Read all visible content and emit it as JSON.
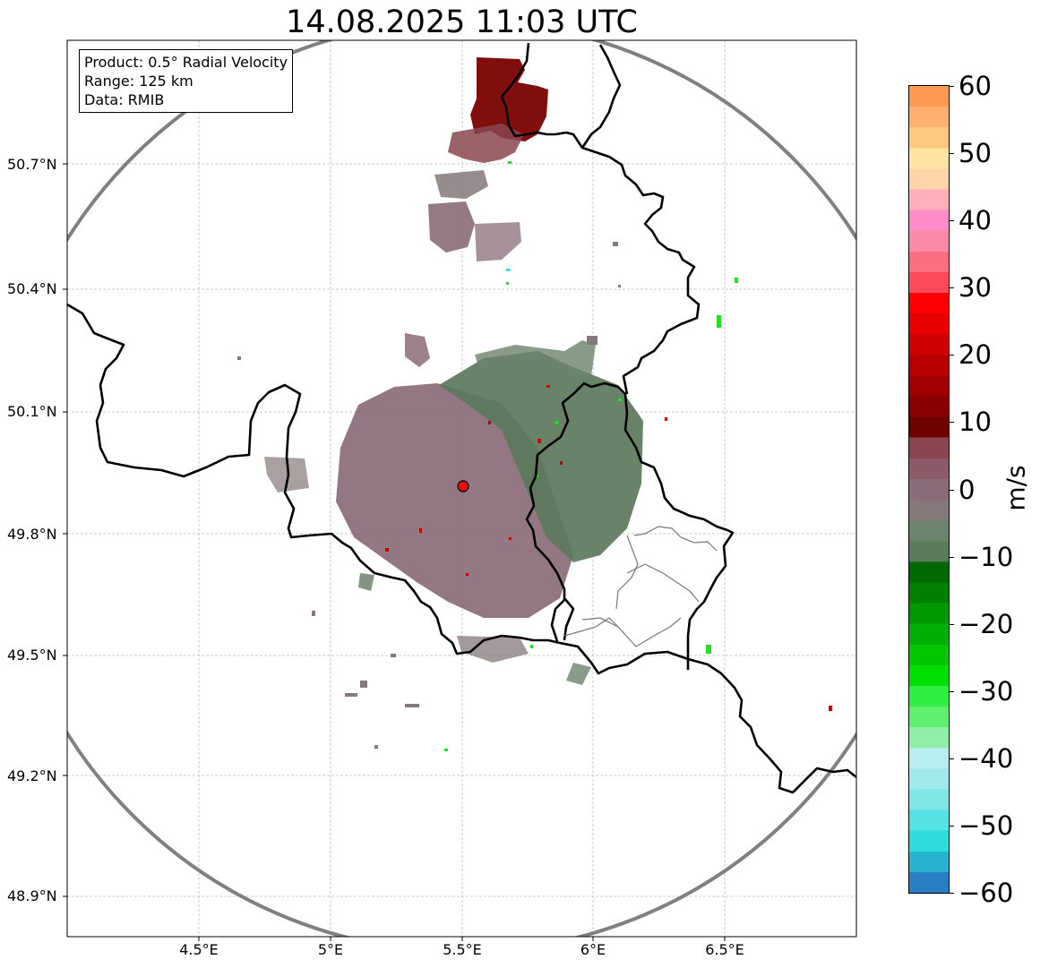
{
  "title": "14.08.2025 11:03 UTC",
  "info_box": {
    "product": "Product: 0.5° Radial Velocity",
    "range": "Range: 125 km",
    "data": "Data: RMIB"
  },
  "axes": {
    "lat_labels": [
      "50.7°N",
      "50.4°N",
      "50.1°N",
      "49.8°N",
      "49.5°N",
      "49.2°N",
      "48.9°N"
    ],
    "lon_labels": [
      "4.5°E",
      "5°E",
      "5.5°E",
      "6°E",
      "6.5°E"
    ]
  },
  "colorbar": {
    "label": "m/s",
    "ticks": [
      "60",
      "50",
      "40",
      "30",
      "20",
      "10",
      "0",
      "−10",
      "−20",
      "−30",
      "−40",
      "−50",
      "−60"
    ],
    "range": [
      -60,
      60
    ],
    "colors": [
      "#2a7fc4",
      "#25b3d0",
      "#2fdcdc",
      "#55e2e2",
      "#7fe6e6",
      "#9fe9ea",
      "#b8eef0",
      "#8ff0a8",
      "#5ff070",
      "#2ff040",
      "#00e000",
      "#00c800",
      "#00b000",
      "#009800",
      "#008000",
      "#006800",
      "#5a7a5a",
      "#6c836c",
      "#84787a",
      "#8a6b78",
      "#8c5a68",
      "#8a4650",
      "#6e0000",
      "#880000",
      "#a00000",
      "#b80000",
      "#d00000",
      "#e80000",
      "#ff0000",
      "#ff4a5a",
      "#ff6e80",
      "#ff8aa8",
      "#ff8cc8",
      "#ffb0b8",
      "#ffd4a8",
      "#ffe4a0",
      "#ffc880",
      "#ffb070",
      "#ff9a50"
    ]
  },
  "radar_site": {
    "lon": 5.505,
    "lat": 49.914,
    "color": "#e01010"
  },
  "range_ring_color": "#808080"
}
